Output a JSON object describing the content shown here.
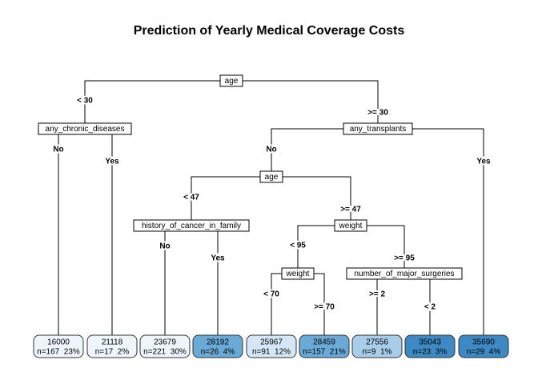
{
  "title": "Prediction of Yearly Medical Coverage Costs",
  "colors": {
    "line": "#000000",
    "leaf_border": "#333333",
    "leaf_scale": [
      "#eef5fc",
      "#d5e7f6",
      "#a8cdea",
      "#6aaad6",
      "#3d89c4"
    ]
  },
  "tree": {
    "nodes": [
      {
        "id": "n_age",
        "label": "age"
      },
      {
        "id": "n_chronic",
        "label": "any_chronic_diseases"
      },
      {
        "id": "n_transplants",
        "label": "any_transplants"
      },
      {
        "id": "n_age2",
        "label": "age"
      },
      {
        "id": "n_cancer",
        "label": "history_of_cancer_in_family"
      },
      {
        "id": "n_weight",
        "label": "weight"
      },
      {
        "id": "n_weight2",
        "label": "weight"
      },
      {
        "id": "n_surgeries",
        "label": "number_of_major_surgeries"
      }
    ],
    "branches": [
      {
        "id": "b_lt30",
        "label": "< 30"
      },
      {
        "id": "b_ge30",
        "label": ">= 30"
      },
      {
        "id": "b_chronic_no",
        "label": "No"
      },
      {
        "id": "b_chronic_yes",
        "label": "Yes"
      },
      {
        "id": "b_trans_no",
        "label": "No"
      },
      {
        "id": "b_trans_yes",
        "label": "Yes"
      },
      {
        "id": "b_lt47",
        "label": "< 47"
      },
      {
        "id": "b_ge47",
        "label": ">= 47"
      },
      {
        "id": "b_cancer_no",
        "label": "No"
      },
      {
        "id": "b_cancer_yes",
        "label": "Yes"
      },
      {
        "id": "b_lt95",
        "label": "< 95"
      },
      {
        "id": "b_ge95",
        "label": ">= 95"
      },
      {
        "id": "b_lt70",
        "label": "< 70"
      },
      {
        "id": "b_ge70",
        "label": ">= 70"
      },
      {
        "id": "b_ge2",
        "label": ">= 2"
      },
      {
        "id": "b_lt2",
        "label": "< 2"
      }
    ],
    "leaves": [
      {
        "value": "16000",
        "stats": "n=167  23%",
        "level": 0
      },
      {
        "value": "21118",
        "stats": "n=17  2%",
        "level": 0
      },
      {
        "value": "23679",
        "stats": "n=221  30%",
        "level": 0
      },
      {
        "value": "28192",
        "stats": "n=26  4%",
        "level": 3
      },
      {
        "value": "25967",
        "stats": "n=91  12%",
        "level": 1
      },
      {
        "value": "28459",
        "stats": "n=157  21%",
        "level": 3
      },
      {
        "value": "27556",
        "stats": "n=9  1%",
        "level": 2
      },
      {
        "value": "35043",
        "stats": "n=23  3%",
        "level": 4
      },
      {
        "value": "35690",
        "stats": "n=29  4%",
        "level": 4
      }
    ]
  }
}
